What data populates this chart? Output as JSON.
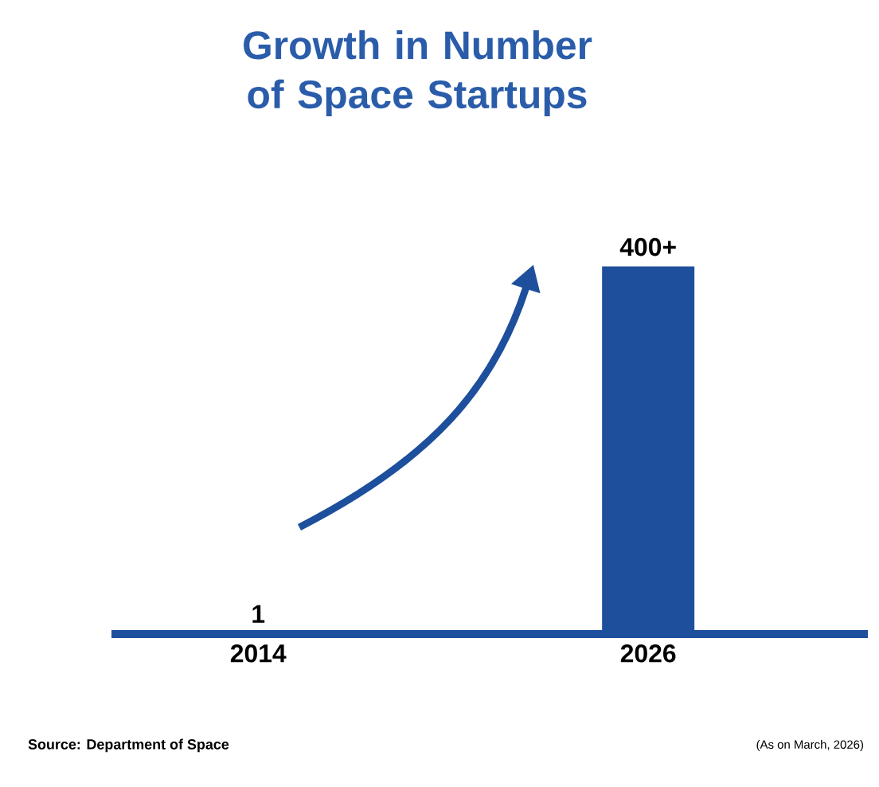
{
  "chart_data": {
    "type": "bar",
    "title": "Growth in Number of Space Startups",
    "categories": [
      "2014",
      "2026"
    ],
    "values": [
      1,
      400
    ],
    "value_labels": [
      "1",
      "400+"
    ],
    "color": "#1d4f9c",
    "annotations": [
      "Source: Department of Space",
      "(As on March, 2026)"
    ]
  }
}
